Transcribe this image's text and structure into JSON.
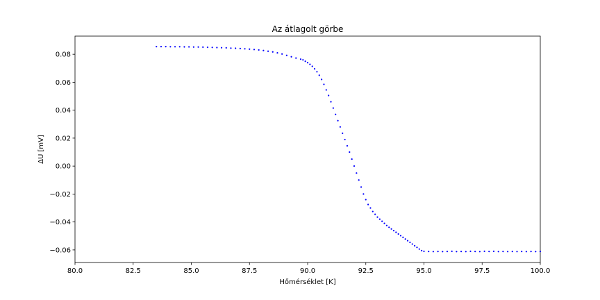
{
  "chart_data": {
    "type": "scatter",
    "title": "Az átlagolt görbe",
    "xlabel": "Hőmérséklet [K]",
    "ylabel": "ΔU [mV]",
    "xlim": [
      80.0,
      100.0
    ],
    "ylim": [
      -0.069,
      0.093
    ],
    "xticks": [
      80.0,
      82.5,
      85.0,
      87.5,
      90.0,
      92.5,
      95.0,
      97.5,
      100.0
    ],
    "xtick_labels": [
      "80.0",
      "82.5",
      "85.0",
      "87.5",
      "90.0",
      "92.5",
      "95.0",
      "97.5",
      "100.0"
    ],
    "yticks": [
      -0.06,
      -0.04,
      -0.02,
      0.0,
      0.02,
      0.04,
      0.06,
      0.08
    ],
    "ytick_labels": [
      "−0.06",
      "−0.04",
      "−0.02",
      "0.00",
      "0.02",
      "0.04",
      "0.06",
      "0.08"
    ],
    "grid": false,
    "marker_color": "#0000ff",
    "series": [
      {
        "x": [
          83.5,
          83.7,
          83.9,
          84.1,
          84.3,
          84.5,
          84.7,
          84.9,
          85.1,
          85.3,
          85.5,
          85.7,
          85.9,
          86.1,
          86.3,
          86.5,
          86.7,
          86.9,
          87.1,
          87.3,
          87.5,
          87.7,
          87.9,
          88.1,
          88.3,
          88.5,
          88.7,
          88.9,
          89.1,
          89.3,
          89.5,
          89.7,
          89.8,
          89.9,
          90.0,
          90.1,
          90.2,
          90.3,
          90.4,
          90.5,
          90.6,
          90.7,
          90.8,
          90.9,
          91.0,
          91.1,
          91.2,
          91.3,
          91.4,
          91.5,
          91.6,
          91.7,
          91.8,
          91.9,
          92.0,
          92.1,
          92.2,
          92.3,
          92.4,
          92.5,
          92.6,
          92.7,
          92.8,
          92.9,
          93.0,
          93.1,
          93.2,
          93.3,
          93.4,
          93.5,
          93.6,
          93.7,
          93.8,
          93.9,
          94.0,
          94.1,
          94.2,
          94.3,
          94.4,
          94.5,
          94.6,
          94.7,
          94.8,
          94.9,
          95.0,
          95.2,
          95.4,
          95.6,
          95.8,
          96.0,
          96.2,
          96.4,
          96.6,
          96.8,
          97.0,
          97.2,
          97.4,
          97.6,
          97.8,
          98.0,
          98.2,
          98.4,
          98.6,
          98.8,
          99.0,
          99.2,
          99.4,
          99.6,
          99.8,
          100.0
        ],
        "y": [
          0.0855,
          0.0855,
          0.0855,
          0.0854,
          0.0854,
          0.0854,
          0.0853,
          0.0853,
          0.0852,
          0.0852,
          0.0851,
          0.085,
          0.0849,
          0.0848,
          0.0847,
          0.0846,
          0.0844,
          0.0843,
          0.0841,
          0.0839,
          0.0837,
          0.0834,
          0.0831,
          0.0827,
          0.0822,
          0.0817,
          0.081,
          0.0802,
          0.0792,
          0.0782,
          0.0773,
          0.0765,
          0.076,
          0.075,
          0.074,
          0.0728,
          0.0714,
          0.0696,
          0.0675,
          0.065,
          0.062,
          0.0585,
          0.0545,
          0.0505,
          0.046,
          0.0415,
          0.037,
          0.0325,
          0.028,
          0.0235,
          0.019,
          0.0145,
          0.01,
          0.005,
          0.0,
          -0.005,
          -0.01,
          -0.015,
          -0.02,
          -0.024,
          -0.0275,
          -0.03,
          -0.0325,
          -0.0345,
          -0.0365,
          -0.038,
          -0.0395,
          -0.041,
          -0.0425,
          -0.0438,
          -0.045,
          -0.0462,
          -0.0474,
          -0.0486,
          -0.0498,
          -0.051,
          -0.0522,
          -0.0534,
          -0.0546,
          -0.0558,
          -0.057,
          -0.0582,
          -0.0594,
          -0.0605,
          -0.061,
          -0.0611,
          -0.0612,
          -0.0611,
          -0.0612,
          -0.0611,
          -0.061,
          -0.0612,
          -0.0611,
          -0.0612,
          -0.061,
          -0.0611,
          -0.0612,
          -0.061,
          -0.0611,
          -0.061,
          -0.0612,
          -0.0611,
          -0.0612,
          -0.0611,
          -0.0612,
          -0.0611,
          -0.0612,
          -0.0611,
          -0.0612,
          -0.0611
        ]
      }
    ]
  }
}
